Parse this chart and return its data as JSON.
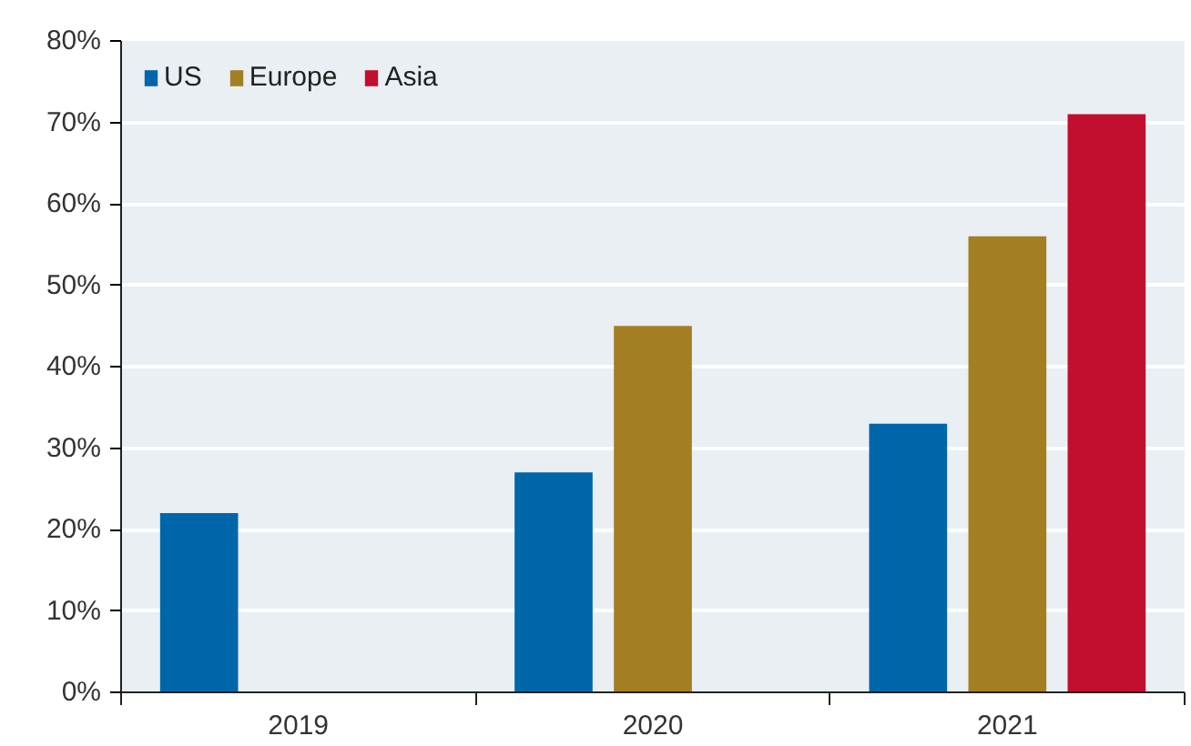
{
  "chart_data": {
    "type": "bar",
    "categories": [
      "2019",
      "2020",
      "2021"
    ],
    "series": [
      {
        "name": "US",
        "color": "#0066aa",
        "values": [
          22,
          27,
          33
        ]
      },
      {
        "name": "Europe",
        "color": "#a47e22",
        "values": [
          null,
          45,
          56
        ]
      },
      {
        "name": "Asia",
        "color": "#c20e2f",
        "values": [
          null,
          null,
          71
        ]
      }
    ],
    "ylim": [
      0,
      80
    ],
    "yticks": [
      {
        "value": 0,
        "label": "0%"
      },
      {
        "value": 10,
        "label": "10%"
      },
      {
        "value": 20,
        "label": "20%"
      },
      {
        "value": 30,
        "label": "30%"
      },
      {
        "value": 40,
        "label": "40%"
      },
      {
        "value": 50,
        "label": "50%"
      },
      {
        "value": 60,
        "label": "60%"
      },
      {
        "value": 70,
        "label": "70%"
      },
      {
        "value": 80,
        "label": "80%"
      }
    ],
    "grid": "y",
    "legend": "top left"
  }
}
